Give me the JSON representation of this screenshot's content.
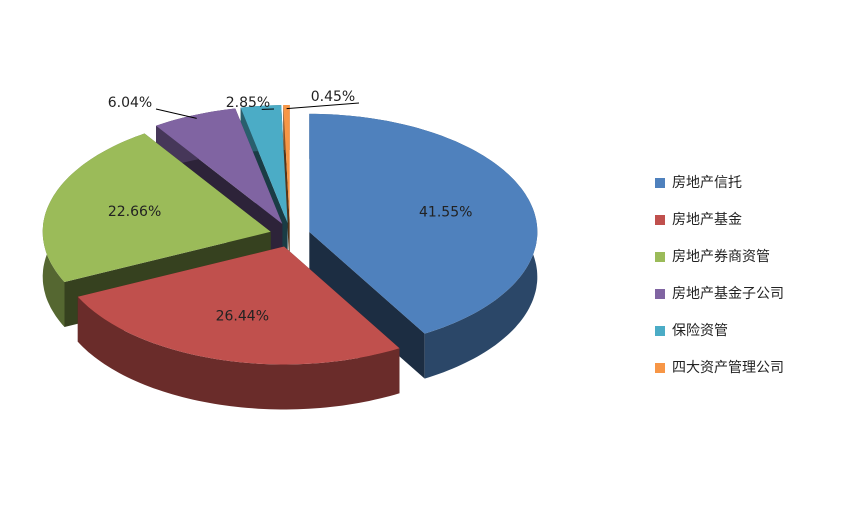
{
  "chart_data": {
    "type": "pie",
    "categories": [
      "房地产信托",
      "房地产基金",
      "房地产券商资管",
      "房地产基金子公司",
      "保险资管",
      "四大资产管理公司"
    ],
    "values": [
      41.55,
      26.44,
      22.66,
      6.04,
      2.85,
      0.45
    ],
    "value_labels": [
      "41.55%",
      "26.44%",
      "22.66%",
      "6.04%",
      "2.85%",
      "0.45%"
    ],
    "colors": [
      "#4f81bd",
      "#c0504d",
      "#9bbb59",
      "#8064a2",
      "#4bacc6",
      "#f79646"
    ],
    "legend": "right"
  }
}
